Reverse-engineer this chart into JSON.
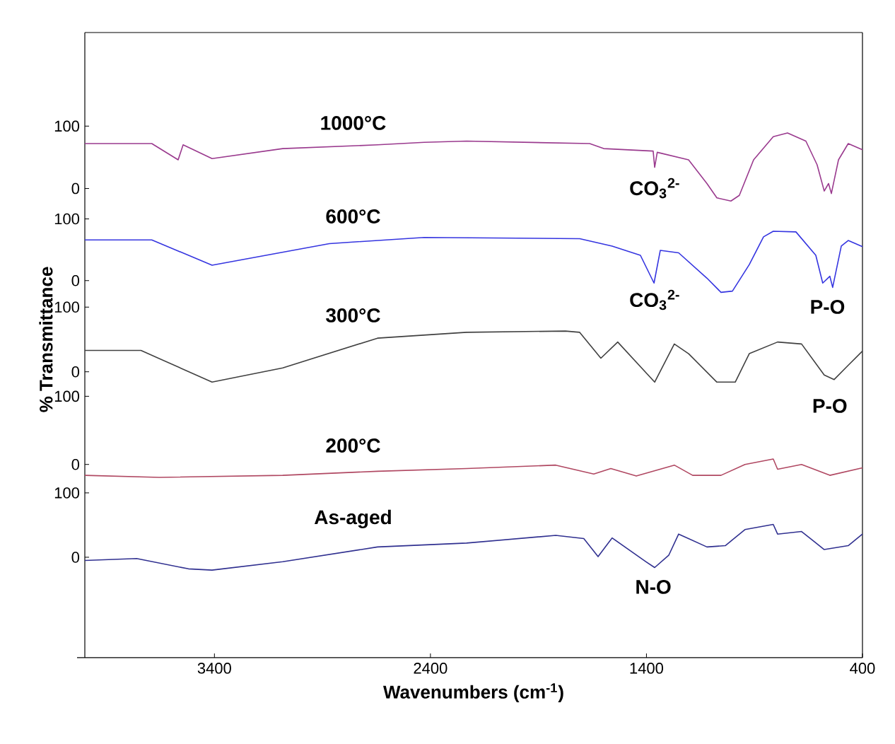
{
  "chart_data": [
    {
      "type": "line",
      "xlim": [
        4000,
        400
      ],
      "ylim": [
        -22,
        250
      ],
      "yticks": [
        0,
        100
      ],
      "tick_labels": "y",
      "series": [
        {
          "name": "1000°C",
          "color": "#9a3a8e",
          "x": [
            4000,
            3690,
            3568,
            3545,
            3411,
            3084,
            2645,
            2429,
            2233,
            1663,
            1598,
            1369,
            1362,
            1350,
            1205,
            1120,
            1074,
            1009,
            970,
            904,
            813,
            747,
            662,
            610,
            577,
            557,
            544,
            511,
            466,
            400
          ],
          "values": [
            72,
            72,
            46,
            70,
            48,
            64,
            70,
            74,
            76,
            72,
            64,
            60,
            34,
            58,
            46,
            8,
            -15,
            -20,
            -11,
            46,
            83,
            89,
            76,
            38,
            -4,
            8,
            -8,
            46,
            72,
            62
          ]
        }
      ],
      "annotations": [
        "CO$_{3}$$^{2-}$"
      ]
    },
    {
      "type": "line",
      "xlim": [
        4000,
        400
      ],
      "ylim": [
        -22,
        127
      ],
      "yticks": [
        0,
        100
      ],
      "tick_labels": "y",
      "series": [
        {
          "name": "600°C",
          "color": "#3535e0",
          "x": [
            4000,
            3690,
            3411,
            2868,
            2429,
            1709,
            1559,
            1428,
            1365,
            1336,
            1251,
            1120,
            1055,
            1002,
            924,
            858,
            813,
            708,
            616,
            584,
            551,
            538,
            498,
            466,
            400
          ],
          "values": [
            66,
            66,
            25,
            60,
            70,
            68,
            56,
            41,
            -4,
            49,
            45,
            4,
            -19,
            -17,
            26,
            71,
            80,
            79,
            41,
            -4,
            7,
            -11,
            56,
            65,
            55
          ]
        }
      ],
      "annotations": [
        "CO$_{3}$$^{2-}$",
        "P-O"
      ]
    },
    {
      "type": "line",
      "xlim": [
        4000,
        400
      ],
      "ylim": [
        -20,
        120
      ],
      "yticks": [
        0,
        100
      ],
      "tick_labels": "y",
      "ylabel": "% Transmittance",
      "series": [
        {
          "name": "300°C",
          "color": "#404040",
          "x": [
            4000,
            3740,
            3411,
            3084,
            2645,
            2233,
            1775,
            1709,
            1611,
            1533,
            1362,
            1271,
            1205,
            1074,
            989,
            924,
            793,
            682,
            577,
            531,
            466,
            400
          ],
          "values": [
            33,
            33,
            -16,
            6,
            52,
            61,
            63,
            61,
            21,
            46,
            -16,
            43,
            28,
            -16,
            -16,
            28,
            46,
            43,
            -5,
            -12,
            10,
            32
          ]
        }
      ],
      "annotations": [
        "P-O"
      ]
    },
    {
      "type": "line",
      "xlim": [
        4000,
        400
      ],
      "ylim": [
        -20,
        117
      ],
      "yticks": [
        0,
        100
      ],
      "tick_labels": "y",
      "series": [
        {
          "name": "200°C",
          "color": "#b04862",
          "x": [
            4000,
            3655,
            3084,
            2645,
            2233,
            1820,
            1644,
            1565,
            1447,
            1271,
            1186,
            1055,
            944,
            813,
            793,
            682,
            551,
            400
          ],
          "values": [
            -16,
            -19,
            -16,
            -10,
            -6,
            -1,
            -14,
            -6,
            -17,
            -1,
            -16,
            -16,
            0,
            8,
            -7,
            0,
            -16,
            -5
          ]
        }
      ]
    },
    {
      "type": "line",
      "xlim": [
        4000,
        400
      ],
      "ylim": [
        -156,
        123
      ],
      "yticks": [
        0,
        100
      ],
      "xticks": [
        3400,
        2400,
        1400,
        400
      ],
      "xlabel": "Wavenumbers (cm$^{-1}$)",
      "series": [
        {
          "name": "As-aged",
          "color": "#303090",
          "x": [
            4000,
            3760,
            3520,
            3411,
            3084,
            2645,
            2233,
            1820,
            1690,
            1624,
            1559,
            1402,
            1362,
            1297,
            1251,
            1120,
            1035,
            944,
            813,
            793,
            682,
            577,
            466,
            400
          ],
          "values": [
            -5,
            -2,
            -18,
            -20,
            -7,
            16,
            22,
            34,
            29,
            1,
            30,
            -7,
            -16,
            3,
            36,
            16,
            18,
            43,
            51,
            36,
            40,
            12,
            18,
            36
          ]
        }
      ],
      "annotations": [
        "N-O"
      ]
    }
  ]
}
